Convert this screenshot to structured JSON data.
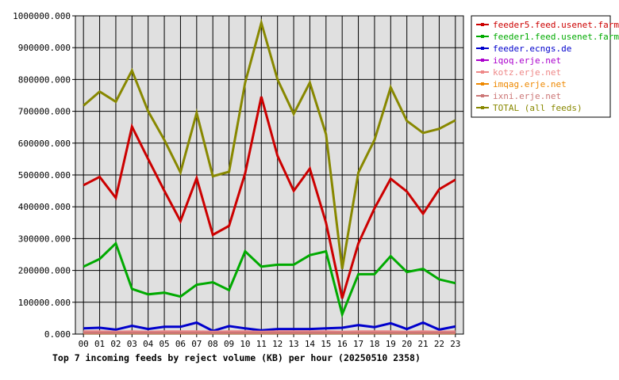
{
  "chart_data": {
    "type": "line",
    "title": "Top 7 incoming feeds by reject volume (KB) per hour (20250510 2358)",
    "categories": [
      "00",
      "01",
      "02",
      "03",
      "04",
      "05",
      "06",
      "07",
      "08",
      "09",
      "10",
      "11",
      "12",
      "13",
      "14",
      "15",
      "16",
      "17",
      "18",
      "19",
      "20",
      "21",
      "22",
      "23"
    ],
    "ylim": [
      0,
      1000000
    ],
    "y_ticks": [
      "0.000",
      "100000.000",
      "200000.000",
      "300000.000",
      "400000.000",
      "500000.000",
      "600000.000",
      "700000.000",
      "800000.000",
      "900000.000",
      "1000000.000"
    ],
    "grid": true,
    "legend_placement": "top-right",
    "plot_background": "#e0e0e0",
    "series": [
      {
        "name": "feeder5.feed.usenet.farm",
        "color": "#cc0000",
        "values": [
          468000,
          494000,
          428000,
          652000,
          550000,
          450000,
          355000,
          490000,
          312000,
          340000,
          505000,
          746000,
          560000,
          450000,
          520000,
          350000,
          112000,
          285000,
          395000,
          488000,
          448000,
          378000,
          455000,
          485000
        ]
      },
      {
        "name": "feeder1.feed.usenet.farm",
        "color": "#00aa00",
        "values": [
          212000,
          236000,
          285000,
          142000,
          125000,
          130000,
          118000,
          155000,
          163000,
          138000,
          260000,
          212000,
          218000,
          218000,
          248000,
          260000,
          62000,
          188000,
          188000,
          245000,
          195000,
          205000,
          172000,
          160000
        ]
      },
      {
        "name": "feeder.ecngs.de",
        "color": "#0000cc",
        "values": [
          18000,
          20000,
          14000,
          26000,
          16000,
          23000,
          23000,
          36000,
          10000,
          25000,
          18000,
          12000,
          16000,
          16000,
          16000,
          18000,
          20000,
          28000,
          22000,
          34000,
          16000,
          36000,
          14000,
          24000
        ]
      },
      {
        "name": "iqoq.erje.net",
        "color": "#aa00cc",
        "values": [
          6000,
          6000,
          5000,
          6000,
          5000,
          6000,
          6000,
          6000,
          5000,
          6000,
          6000,
          5000,
          6000,
          6000,
          6000,
          6000,
          5000,
          6000,
          6000,
          6000,
          5000,
          6000,
          5000,
          6000
        ]
      },
      {
        "name": "kotz.erje.net",
        "color": "#ee8888",
        "values": [
          8000,
          8000,
          7000,
          8000,
          7000,
          8000,
          8000,
          8000,
          7000,
          8000,
          8000,
          7000,
          8000,
          8000,
          8000,
          8000,
          7000,
          8000,
          8000,
          8000,
          7000,
          8000,
          7000,
          8000
        ]
      },
      {
        "name": "imqag.erje.net",
        "color": "#ee8800",
        "values": [
          3000,
          3000,
          3000,
          3000,
          3000,
          3000,
          3000,
          3000,
          3000,
          3000,
          3000,
          3000,
          3000,
          3000,
          3000,
          3000,
          3000,
          3000,
          3000,
          3000,
          3000,
          3000,
          3000,
          3000
        ]
      },
      {
        "name": "ixni.erje.net",
        "color": "#cc7777",
        "values": [
          4000,
          4000,
          4000,
          4000,
          4000,
          4000,
          4000,
          4000,
          4000,
          4000,
          4000,
          4000,
          4000,
          4000,
          4000,
          4000,
          4000,
          4000,
          4000,
          4000,
          4000,
          4000,
          4000,
          4000
        ]
      },
      {
        "name": "TOTAL (all feeds)",
        "color": "#888800",
        "values": [
          718000,
          762000,
          730000,
          828000,
          700000,
          610000,
          508000,
          695000,
          496000,
          510000,
          790000,
          978000,
          800000,
          692000,
          790000,
          628000,
          205000,
          508000,
          610000,
          775000,
          670000,
          632000,
          645000,
          672000
        ]
      }
    ]
  }
}
